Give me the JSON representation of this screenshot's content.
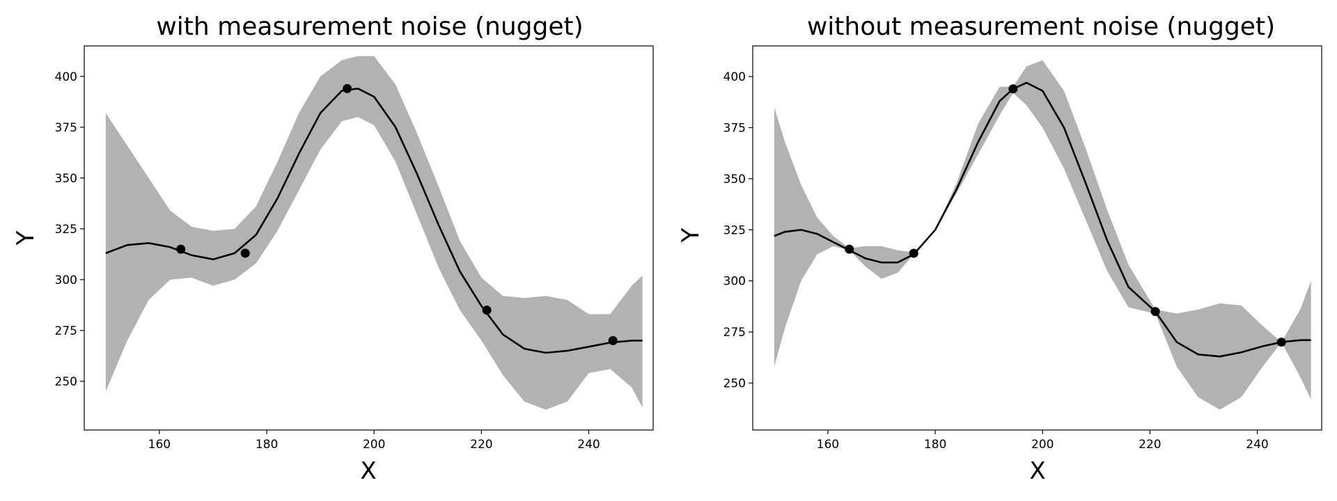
{
  "chart_data": [
    {
      "type": "line",
      "title": "with measurement noise (nugget)",
      "xlabel": "X",
      "ylabel": "Y",
      "xlim": [
        146,
        252
      ],
      "ylim": [
        226,
        415
      ],
      "xticks": [
        160,
        180,
        200,
        220,
        240
      ],
      "yticks": [
        250,
        275,
        300,
        325,
        350,
        375,
        400
      ],
      "grid": false,
      "legend": "none",
      "series": [
        {
          "role": "mean",
          "x": [
            150,
            154,
            158,
            162,
            166,
            170,
            174,
            178,
            182,
            186,
            190,
            194,
            197,
            200,
            204,
            208,
            212,
            216,
            220,
            224,
            228,
            232,
            236,
            240,
            244,
            248,
            250
          ],
          "y": [
            313,
            317,
            318,
            316,
            312,
            310,
            313,
            322,
            340,
            362,
            382,
            393,
            394,
            390,
            375,
            352,
            327,
            304,
            287,
            273,
            266,
            264,
            265,
            267,
            269,
            270,
            270
          ]
        },
        {
          "role": "band",
          "x": [
            150,
            154,
            158,
            162,
            166,
            170,
            174,
            178,
            182,
            186,
            190,
            194,
            197,
            200,
            204,
            208,
            212,
            216,
            220,
            224,
            228,
            232,
            236,
            240,
            244,
            248,
            250
          ],
          "upper": [
            382,
            366,
            350,
            334,
            326,
            324,
            325,
            336,
            358,
            382,
            400,
            408,
            410,
            410,
            396,
            372,
            346,
            319,
            301,
            292,
            291,
            292,
            290,
            283,
            283,
            297,
            302
          ],
          "lower": [
            245,
            270,
            290,
            300,
            301,
            297,
            300,
            308,
            324,
            344,
            364,
            378,
            380,
            376,
            358,
            332,
            306,
            285,
            270,
            253,
            240,
            236,
            240,
            254,
            256,
            247,
            237
          ]
        },
        {
          "role": "points",
          "x": [
            164,
            176,
            195,
            221,
            244.5
          ],
          "y": [
            315,
            313,
            394,
            285,
            270
          ]
        }
      ]
    },
    {
      "type": "line",
      "title": "without measurement noise (nugget)",
      "xlabel": "X",
      "ylabel": "Y",
      "xlim": [
        146,
        252
      ],
      "ylim": [
        227,
        415
      ],
      "xticks": [
        160,
        180,
        200,
        220,
        240
      ],
      "yticks": [
        250,
        275,
        300,
        325,
        350,
        375,
        400
      ],
      "grid": false,
      "legend": "none",
      "series": [
        {
          "role": "mean",
          "x": [
            150,
            152,
            155,
            158,
            161,
            164,
            167,
            170,
            173,
            176,
            180,
            184,
            188,
            192,
            194.5,
            197,
            200,
            204,
            208,
            212,
            216,
            221,
            225,
            229,
            233,
            237,
            241,
            244.5,
            248,
            250
          ],
          "y": [
            322,
            324,
            325,
            323,
            319,
            315,
            311,
            309,
            309,
            313,
            325,
            345,
            368,
            388,
            394,
            397,
            393,
            375,
            348,
            320,
            297,
            285,
            270,
            264,
            263,
            265,
            268,
            270,
            271,
            271
          ]
        },
        {
          "role": "band",
          "x": [
            150,
            152,
            155,
            158,
            161,
            164,
            167,
            170,
            173,
            176,
            180,
            184,
            188,
            192,
            194.5,
            197,
            200,
            204,
            208,
            212,
            216,
            221,
            225,
            229,
            233,
            237,
            241,
            244.5,
            248,
            250
          ],
          "upper": [
            385,
            368,
            347,
            331,
            322,
            316,
            317,
            317,
            315,
            314,
            325,
            348,
            377,
            395,
            395,
            405,
            408,
            393,
            365,
            335,
            308,
            286,
            284,
            286,
            289,
            288,
            278,
            270,
            286,
            300
          ],
          "lower": [
            258,
            277,
            300,
            313,
            317,
            315,
            307,
            301,
            304,
            313,
            325,
            343,
            362,
            381,
            392,
            386,
            375,
            355,
            330,
            305,
            287,
            284,
            258,
            243,
            237,
            243,
            258,
            270,
            253,
            242
          ]
        },
        {
          "role": "points",
          "x": [
            164,
            176,
            194.5,
            221,
            244.5
          ],
          "y": [
            315.5,
            313.5,
            394,
            285,
            270
          ]
        }
      ]
    }
  ]
}
